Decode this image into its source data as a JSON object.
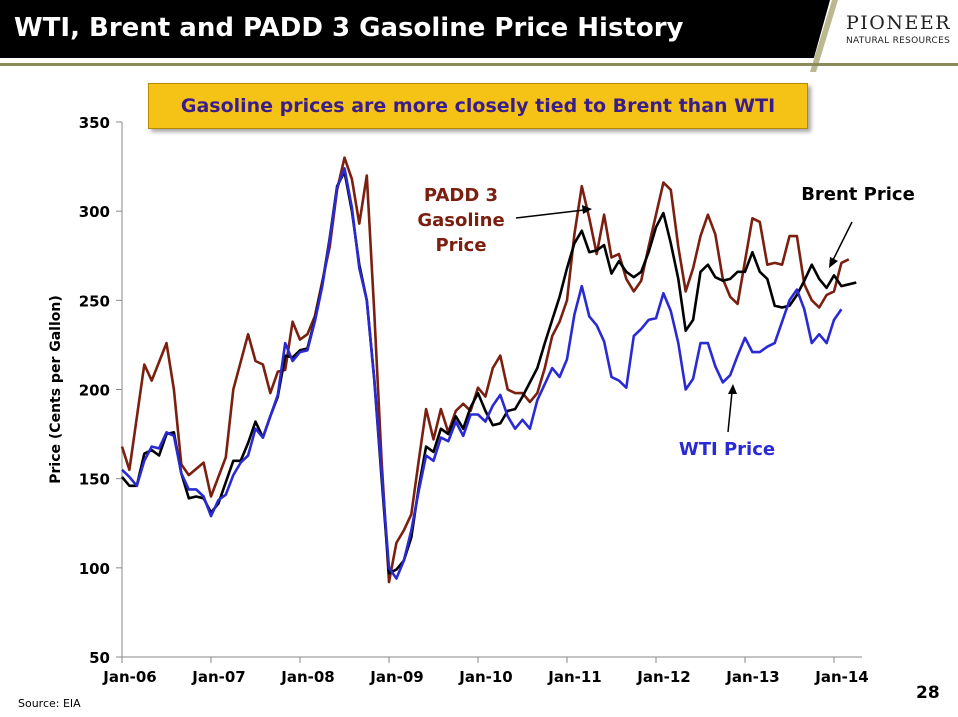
{
  "slide": {
    "title": "WTI, Brent and PADD 3 Gasoline Price History",
    "callout": "Gasoline prices are more closely tied to Brent than WTI",
    "source": "Source: EIA",
    "page_number": "28",
    "logo_name": "PIONEER",
    "logo_subtitle": "NATURAL RESOURCES"
  },
  "colors": {
    "title_bar": "#000000",
    "callout_fill": "#f5c316",
    "callout_text": "#3a1d8a",
    "padd3": "#7b2010",
    "brent": "#000000",
    "wti": "#2a2ad4"
  },
  "chart_data": {
    "type": "line",
    "ylabel": "Price (Cents per Gallon)",
    "xlabel": "",
    "ylim": [
      50,
      350
    ],
    "yticks": [
      50,
      100,
      150,
      200,
      250,
      300,
      350
    ],
    "xlim": [
      "Jan-06",
      "Apr-14"
    ],
    "xticks": [
      "Jan-06",
      "Jan-07",
      "Jan-08",
      "Jan-09",
      "Jan-10",
      "Jan-11",
      "Jan-12",
      "Jan-13",
      "Jan-14"
    ],
    "grid": false,
    "annotations": [
      {
        "text": "PADD 3 Gasoline Price",
        "lines": [
          "PADD 3",
          "Gasoline",
          "Price"
        ],
        "color": "#7b2010"
      },
      {
        "text": "Brent Price",
        "color": "#000000"
      },
      {
        "text": "WTI Price",
        "color": "#2a2ad4"
      }
    ],
    "series": [
      {
        "name": "PADD 3 Gasoline Price",
        "color": "#7b2010",
        "points": [
          [
            0,
            168
          ],
          [
            1,
            155
          ],
          [
            3,
            214
          ],
          [
            4,
            205
          ],
          [
            6,
            226
          ],
          [
            7,
            200
          ],
          [
            8,
            158
          ],
          [
            9,
            152
          ],
          [
            11,
            159
          ],
          [
            12,
            140
          ],
          [
            14,
            162
          ],
          [
            15,
            200
          ],
          [
            17,
            231
          ],
          [
            18,
            216
          ],
          [
            19,
            214
          ],
          [
            20,
            198
          ],
          [
            21,
            210
          ],
          [
            22,
            211
          ],
          [
            23,
            238
          ],
          [
            24,
            228
          ],
          [
            25,
            231
          ],
          [
            26,
            241
          ],
          [
            28,
            280
          ],
          [
            29,
            312
          ],
          [
            30,
            330
          ],
          [
            31,
            318
          ],
          [
            32,
            293
          ],
          [
            33,
            320
          ],
          [
            34,
            244
          ],
          [
            35,
            160
          ],
          [
            36,
            92
          ],
          [
            37,
            114
          ],
          [
            38,
            121
          ],
          [
            39,
            130
          ],
          [
            40,
            160
          ],
          [
            41,
            189
          ],
          [
            42,
            172
          ],
          [
            43,
            189
          ],
          [
            44,
            176
          ],
          [
            45,
            188
          ],
          [
            46,
            192
          ],
          [
            47,
            188
          ],
          [
            48,
            201
          ],
          [
            49,
            196
          ],
          [
            50,
            212
          ],
          [
            51,
            219
          ],
          [
            52,
            200
          ],
          [
            53,
            198
          ],
          [
            54,
            198
          ],
          [
            55,
            193
          ],
          [
            56,
            198
          ],
          [
            57,
            212
          ],
          [
            58,
            230
          ],
          [
            59,
            238
          ],
          [
            60,
            250
          ],
          [
            61,
            287
          ],
          [
            62,
            314
          ],
          [
            63,
            296
          ],
          [
            64,
            276
          ],
          [
            65,
            298
          ],
          [
            66,
            274
          ],
          [
            67,
            276
          ],
          [
            68,
            262
          ],
          [
            69,
            255
          ],
          [
            70,
            261
          ],
          [
            71,
            280
          ],
          [
            72,
            298
          ],
          [
            73,
            316
          ],
          [
            74,
            312
          ],
          [
            75,
            280
          ],
          [
            76,
            255
          ],
          [
            77,
            268
          ],
          [
            78,
            286
          ],
          [
            79,
            298
          ],
          [
            80,
            287
          ],
          [
            81,
            262
          ],
          [
            82,
            252
          ],
          [
            83,
            248
          ],
          [
            84,
            272
          ],
          [
            85,
            296
          ],
          [
            86,
            294
          ],
          [
            87,
            270
          ],
          [
            88,
            271
          ],
          [
            89,
            270
          ],
          [
            90,
            286
          ],
          [
            91,
            286
          ],
          [
            92,
            259
          ],
          [
            93,
            250
          ],
          [
            94,
            246
          ],
          [
            95,
            253
          ],
          [
            96,
            255
          ],
          [
            97,
            271
          ],
          [
            98,
            273
          ]
        ]
      },
      {
        "name": "Brent Price",
        "color": "#000000",
        "points": [
          [
            0,
            151
          ],
          [
            1,
            146
          ],
          [
            2,
            146
          ],
          [
            3,
            164
          ],
          [
            4,
            166
          ],
          [
            5,
            163
          ],
          [
            6,
            175
          ],
          [
            7,
            176
          ],
          [
            8,
            153
          ],
          [
            9,
            139
          ],
          [
            10,
            140
          ],
          [
            11,
            139
          ],
          [
            12,
            131
          ],
          [
            13,
            136
          ],
          [
            14,
            148
          ],
          [
            15,
            160
          ],
          [
            16,
            160
          ],
          [
            17,
            170
          ],
          [
            18,
            182
          ],
          [
            19,
            173
          ],
          [
            20,
            185
          ],
          [
            21,
            196
          ],
          [
            22,
            219
          ],
          [
            23,
            218
          ],
          [
            24,
            222
          ],
          [
            25,
            223
          ],
          [
            26,
            239
          ],
          [
            27,
            259
          ],
          [
            28,
            285
          ],
          [
            29,
            314
          ],
          [
            30,
            322
          ],
          [
            31,
            300
          ],
          [
            32,
            270
          ],
          [
            33,
            250
          ],
          [
            34,
            206
          ],
          [
            35,
            150
          ],
          [
            36,
            97
          ],
          [
            37,
            99
          ],
          [
            38,
            104
          ],
          [
            39,
            117
          ],
          [
            40,
            145
          ],
          [
            41,
            168
          ],
          [
            42,
            165
          ],
          [
            43,
            178
          ],
          [
            44,
            175
          ],
          [
            45,
            185
          ],
          [
            46,
            178
          ],
          [
            47,
            190
          ],
          [
            48,
            198
          ],
          [
            49,
            188
          ],
          [
            50,
            180
          ],
          [
            51,
            181
          ],
          [
            52,
            188
          ],
          [
            53,
            189
          ],
          [
            54,
            196
          ],
          [
            55,
            204
          ],
          [
            56,
            212
          ],
          [
            57,
            226
          ],
          [
            58,
            239
          ],
          [
            59,
            252
          ],
          [
            60,
            268
          ],
          [
            61,
            282
          ],
          [
            62,
            289
          ],
          [
            63,
            277
          ],
          [
            64,
            278
          ],
          [
            65,
            281
          ],
          [
            66,
            265
          ],
          [
            67,
            272
          ],
          [
            68,
            266
          ],
          [
            69,
            263
          ],
          [
            70,
            266
          ],
          [
            71,
            277
          ],
          [
            72,
            291
          ],
          [
            73,
            299
          ],
          [
            74,
            282
          ],
          [
            75,
            262
          ],
          [
            76,
            233
          ],
          [
            77,
            239
          ],
          [
            78,
            266
          ],
          [
            79,
            270
          ],
          [
            80,
            263
          ],
          [
            81,
            261
          ],
          [
            82,
            262
          ],
          [
            83,
            266
          ],
          [
            84,
            266
          ],
          [
            85,
            277
          ],
          [
            86,
            266
          ],
          [
            87,
            262
          ],
          [
            88,
            247
          ],
          [
            89,
            246
          ],
          [
            90,
            247
          ],
          [
            91,
            253
          ],
          [
            92,
            261
          ],
          [
            93,
            270
          ],
          [
            94,
            262
          ],
          [
            95,
            257
          ],
          [
            96,
            264
          ],
          [
            97,
            258
          ],
          [
            98,
            259
          ],
          [
            99,
            260
          ]
        ]
      },
      {
        "name": "WTI Price",
        "color": "#2a2ad4",
        "points": [
          [
            0,
            155
          ],
          [
            1,
            151
          ],
          [
            2,
            146
          ],
          [
            3,
            160
          ],
          [
            4,
            168
          ],
          [
            5,
            167
          ],
          [
            6,
            176
          ],
          [
            7,
            174
          ],
          [
            8,
            153
          ],
          [
            9,
            144
          ],
          [
            10,
            144
          ],
          [
            11,
            140
          ],
          [
            12,
            129
          ],
          [
            13,
            138
          ],
          [
            14,
            141
          ],
          [
            15,
            152
          ],
          [
            16,
            159
          ],
          [
            17,
            163
          ],
          [
            18,
            178
          ],
          [
            19,
            173
          ],
          [
            20,
            185
          ],
          [
            21,
            197
          ],
          [
            22,
            226
          ],
          [
            23,
            216
          ],
          [
            24,
            221
          ],
          [
            25,
            222
          ],
          [
            26,
            238
          ],
          [
            27,
            258
          ],
          [
            28,
            284
          ],
          [
            29,
            313
          ],
          [
            30,
            324
          ],
          [
            31,
            302
          ],
          [
            32,
            268
          ],
          [
            33,
            250
          ],
          [
            34,
            206
          ],
          [
            35,
            153
          ],
          [
            36,
            100
          ],
          [
            37,
            94
          ],
          [
            38,
            104
          ],
          [
            39,
            121
          ],
          [
            40,
            143
          ],
          [
            41,
            163
          ],
          [
            42,
            160
          ],
          [
            43,
            173
          ],
          [
            44,
            171
          ],
          [
            45,
            182
          ],
          [
            46,
            174
          ],
          [
            47,
            186
          ],
          [
            48,
            186
          ],
          [
            49,
            182
          ],
          [
            50,
            191
          ],
          [
            51,
            197
          ],
          [
            52,
            185
          ],
          [
            53,
            178
          ],
          [
            54,
            183
          ],
          [
            55,
            178
          ],
          [
            56,
            194
          ],
          [
            57,
            203
          ],
          [
            58,
            212
          ],
          [
            59,
            207
          ],
          [
            60,
            217
          ],
          [
            61,
            242
          ],
          [
            62,
            258
          ],
          [
            63,
            241
          ],
          [
            64,
            236
          ],
          [
            65,
            227
          ],
          [
            66,
            207
          ],
          [
            67,
            205
          ],
          [
            68,
            201
          ],
          [
            69,
            230
          ],
          [
            70,
            234
          ],
          [
            71,
            239
          ],
          [
            72,
            240
          ],
          [
            73,
            254
          ],
          [
            74,
            244
          ],
          [
            75,
            226
          ],
          [
            76,
            200
          ],
          [
            77,
            206
          ],
          [
            78,
            226
          ],
          [
            79,
            226
          ],
          [
            80,
            213
          ],
          [
            81,
            204
          ],
          [
            82,
            208
          ],
          [
            83,
            219
          ],
          [
            84,
            229
          ],
          [
            85,
            221
          ],
          [
            86,
            221
          ],
          [
            87,
            224
          ],
          [
            88,
            226
          ],
          [
            89,
            238
          ],
          [
            90,
            250
          ],
          [
            91,
            256
          ],
          [
            92,
            245
          ],
          [
            93,
            226
          ],
          [
            94,
            231
          ],
          [
            95,
            226
          ],
          [
            96,
            239
          ],
          [
            97,
            245
          ]
        ]
      }
    ]
  }
}
